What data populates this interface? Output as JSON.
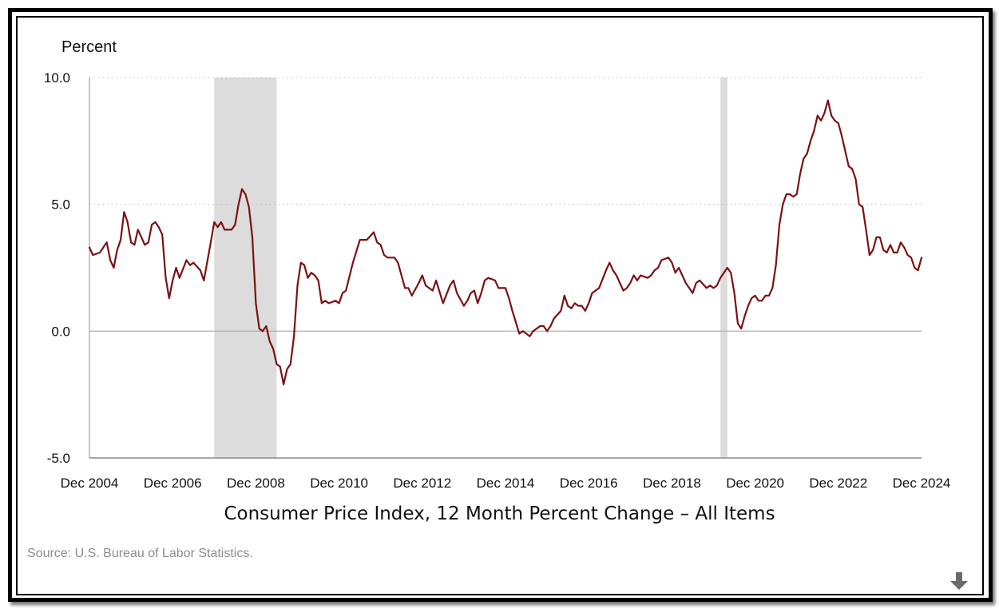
{
  "caption": "Consumer Price Index, 12 Month Percent Change – All Items",
  "source": "Source: U.S. Bureau of Labor Statistics.",
  "download_icon": "download-arrow-icon",
  "colors": {
    "line": "#7b1113",
    "recession": "#dcdcdc",
    "grid": "#c8c8c8",
    "zero": "#b5b5b5"
  },
  "chart_data": {
    "type": "line",
    "ylabel": "Percent",
    "ylim": [
      -5,
      10
    ],
    "yticks": [
      10,
      5,
      0,
      -5
    ],
    "ytick_labels": [
      "10.0",
      "5.0",
      "0.0",
      "-5.0"
    ],
    "xlim": [
      2004.917,
      2024.917
    ],
    "xticks": [
      2004.917,
      2006.917,
      2008.917,
      2010.917,
      2012.917,
      2014.917,
      2016.917,
      2018.917,
      2020.917,
      2022.917,
      2024.917
    ],
    "xtick_labels": [
      "Dec 2004",
      "Dec 2006",
      "Dec 2008",
      "Dec 2010",
      "Dec 2012",
      "Dec 2014",
      "Dec 2016",
      "Dec 2018",
      "Dec 2020",
      "Dec 2022",
      "Dec 2024"
    ],
    "grid": "dotted horizontal",
    "recession_bands": [
      [
        2007.917,
        2009.417
      ],
      [
        2020.083,
        2020.25
      ]
    ],
    "series": [
      {
        "values": [
          [
            2004.917,
            3.3
          ],
          [
            2005.0,
            3.0
          ],
          [
            2005.167,
            3.1
          ],
          [
            2005.333,
            3.5
          ],
          [
            2005.417,
            2.8
          ],
          [
            2005.5,
            2.5
          ],
          [
            2005.583,
            3.2
          ],
          [
            2005.667,
            3.6
          ],
          [
            2005.75,
            4.7
          ],
          [
            2005.833,
            4.3
          ],
          [
            2005.917,
            3.5
          ],
          [
            2006.0,
            3.4
          ],
          [
            2006.083,
            4.0
          ],
          [
            2006.167,
            3.7
          ],
          [
            2006.25,
            3.4
          ],
          [
            2006.333,
            3.5
          ],
          [
            2006.417,
            4.2
          ],
          [
            2006.5,
            4.3
          ],
          [
            2006.583,
            4.1
          ],
          [
            2006.667,
            3.8
          ],
          [
            2006.75,
            2.1
          ],
          [
            2006.833,
            1.3
          ],
          [
            2006.917,
            2.0
          ],
          [
            2007.0,
            2.5
          ],
          [
            2007.083,
            2.1
          ],
          [
            2007.25,
            2.8
          ],
          [
            2007.333,
            2.6
          ],
          [
            2007.417,
            2.7
          ],
          [
            2007.583,
            2.4
          ],
          [
            2007.667,
            2.0
          ],
          [
            2007.833,
            3.5
          ],
          [
            2007.917,
            4.3
          ],
          [
            2008.0,
            4.1
          ],
          [
            2008.083,
            4.3
          ],
          [
            2008.167,
            4.0
          ],
          [
            2008.333,
            4.0
          ],
          [
            2008.417,
            4.2
          ],
          [
            2008.5,
            5.0
          ],
          [
            2008.583,
            5.6
          ],
          [
            2008.667,
            5.4
          ],
          [
            2008.75,
            4.9
          ],
          [
            2008.833,
            3.7
          ],
          [
            2008.917,
            1.1
          ],
          [
            2009.0,
            0.1
          ],
          [
            2009.083,
            0.0
          ],
          [
            2009.167,
            0.2
          ],
          [
            2009.25,
            -0.4
          ],
          [
            2009.333,
            -0.7
          ],
          [
            2009.417,
            -1.3
          ],
          [
            2009.5,
            -1.4
          ],
          [
            2009.583,
            -2.1
          ],
          [
            2009.667,
            -1.5
          ],
          [
            2009.75,
            -1.3
          ],
          [
            2009.833,
            -0.2
          ],
          [
            2009.917,
            1.8
          ],
          [
            2010.0,
            2.7
          ],
          [
            2010.083,
            2.6
          ],
          [
            2010.167,
            2.1
          ],
          [
            2010.25,
            2.3
          ],
          [
            2010.333,
            2.2
          ],
          [
            2010.417,
            2.0
          ],
          [
            2010.5,
            1.1
          ],
          [
            2010.583,
            1.2
          ],
          [
            2010.667,
            1.1
          ],
          [
            2010.833,
            1.2
          ],
          [
            2010.917,
            1.1
          ],
          [
            2011.0,
            1.5
          ],
          [
            2011.083,
            1.6
          ],
          [
            2011.25,
            2.7
          ],
          [
            2011.417,
            3.6
          ],
          [
            2011.583,
            3.6
          ],
          [
            2011.75,
            3.9
          ],
          [
            2011.833,
            3.5
          ],
          [
            2011.917,
            3.4
          ],
          [
            2012.0,
            3.0
          ],
          [
            2012.083,
            2.9
          ],
          [
            2012.25,
            2.9
          ],
          [
            2012.333,
            2.7
          ],
          [
            2012.5,
            1.7
          ],
          [
            2012.583,
            1.7
          ],
          [
            2012.667,
            1.4
          ],
          [
            2012.833,
            1.9
          ],
          [
            2012.917,
            2.2
          ],
          [
            2013.0,
            1.8
          ],
          [
            2013.167,
            1.6
          ],
          [
            2013.25,
            2.0
          ],
          [
            2013.417,
            1.1
          ],
          [
            2013.583,
            1.8
          ],
          [
            2013.667,
            2.0
          ],
          [
            2013.75,
            1.5
          ],
          [
            2013.917,
            1.0
          ],
          [
            2014.0,
            1.2
          ],
          [
            2014.083,
            1.5
          ],
          [
            2014.167,
            1.6
          ],
          [
            2014.25,
            1.1
          ],
          [
            2014.333,
            1.5
          ],
          [
            2014.417,
            2.0
          ],
          [
            2014.5,
            2.1
          ],
          [
            2014.667,
            2.0
          ],
          [
            2014.75,
            1.7
          ],
          [
            2014.917,
            1.7
          ],
          [
            2015.0,
            1.3
          ],
          [
            2015.083,
            0.8
          ],
          [
            2015.25,
            -0.1
          ],
          [
            2015.333,
            0.0
          ],
          [
            2015.5,
            -0.2
          ],
          [
            2015.583,
            0.0
          ],
          [
            2015.75,
            0.2
          ],
          [
            2015.833,
            0.2
          ],
          [
            2015.917,
            0.0
          ],
          [
            2016.0,
            0.2
          ],
          [
            2016.083,
            0.5
          ],
          [
            2016.25,
            0.8
          ],
          [
            2016.333,
            1.4
          ],
          [
            2016.417,
            1.0
          ],
          [
            2016.5,
            0.9
          ],
          [
            2016.583,
            1.1
          ],
          [
            2016.667,
            1.0
          ],
          [
            2016.75,
            1.0
          ],
          [
            2016.833,
            0.8
          ],
          [
            2016.917,
            1.1
          ],
          [
            2017.0,
            1.5
          ],
          [
            2017.167,
            1.7
          ],
          [
            2017.333,
            2.4
          ],
          [
            2017.417,
            2.7
          ],
          [
            2017.5,
            2.4
          ],
          [
            2017.583,
            2.2
          ],
          [
            2017.75,
            1.6
          ],
          [
            2017.833,
            1.7
          ],
          [
            2017.917,
            1.9
          ],
          [
            2018.0,
            2.2
          ],
          [
            2018.083,
            2.0
          ],
          [
            2018.167,
            2.2
          ],
          [
            2018.333,
            2.1
          ],
          [
            2018.417,
            2.2
          ],
          [
            2018.5,
            2.4
          ],
          [
            2018.583,
            2.5
          ],
          [
            2018.667,
            2.8
          ],
          [
            2018.833,
            2.9
          ],
          [
            2018.917,
            2.7
          ],
          [
            2019.0,
            2.3
          ],
          [
            2019.083,
            2.5
          ],
          [
            2019.167,
            2.2
          ],
          [
            2019.25,
            1.9
          ],
          [
            2019.333,
            1.7
          ],
          [
            2019.417,
            1.5
          ],
          [
            2019.5,
            1.9
          ],
          [
            2019.583,
            2.0
          ],
          [
            2019.75,
            1.7
          ],
          [
            2019.833,
            1.8
          ],
          [
            2019.917,
            1.7
          ],
          [
            2020.0,
            1.8
          ],
          [
            2020.083,
            2.1
          ],
          [
            2020.25,
            2.5
          ],
          [
            2020.333,
            2.3
          ],
          [
            2020.417,
            1.5
          ],
          [
            2020.5,
            0.3
          ],
          [
            2020.583,
            0.1
          ],
          [
            2020.667,
            0.6
          ],
          [
            2020.75,
            1.0
          ],
          [
            2020.833,
            1.3
          ],
          [
            2020.917,
            1.4
          ],
          [
            2021.0,
            1.2
          ],
          [
            2021.083,
            1.2
          ],
          [
            2021.167,
            1.4
          ],
          [
            2021.25,
            1.4
          ],
          [
            2021.333,
            1.7
          ],
          [
            2021.417,
            2.6
          ],
          [
            2021.5,
            4.2
          ],
          [
            2021.583,
            5.0
          ],
          [
            2021.667,
            5.4
          ],
          [
            2021.75,
            5.4
          ],
          [
            2021.833,
            5.3
          ],
          [
            2021.917,
            5.4
          ],
          [
            2022.0,
            6.2
          ],
          [
            2022.083,
            6.8
          ],
          [
            2022.167,
            7.0
          ],
          [
            2022.25,
            7.5
          ],
          [
            2022.333,
            7.9
          ],
          [
            2022.417,
            8.5
          ],
          [
            2022.5,
            8.3
          ],
          [
            2022.583,
            8.6
          ],
          [
            2022.667,
            9.1
          ],
          [
            2022.75,
            8.5
          ],
          [
            2022.833,
            8.3
          ],
          [
            2022.917,
            8.2
          ],
          [
            2023.0,
            7.7
          ],
          [
            2023.083,
            7.1
          ],
          [
            2023.167,
            6.5
          ],
          [
            2023.25,
            6.4
          ],
          [
            2023.333,
            6.0
          ],
          [
            2023.417,
            5.0
          ],
          [
            2023.5,
            4.9
          ],
          [
            2023.583,
            4.0
          ],
          [
            2023.667,
            3.0
          ],
          [
            2023.75,
            3.2
          ],
          [
            2023.833,
            3.7
          ],
          [
            2023.917,
            3.7
          ],
          [
            2024.0,
            3.2
          ],
          [
            2024.083,
            3.1
          ],
          [
            2024.167,
            3.4
          ],
          [
            2024.25,
            3.1
          ],
          [
            2024.333,
            3.1
          ],
          [
            2024.417,
            3.5
          ],
          [
            2024.5,
            3.3
          ],
          [
            2024.583,
            3.0
          ],
          [
            2024.667,
            2.9
          ],
          [
            2024.75,
            2.5
          ],
          [
            2024.833,
            2.4
          ],
          [
            2024.917,
            2.9
          ]
        ]
      }
    ]
  }
}
